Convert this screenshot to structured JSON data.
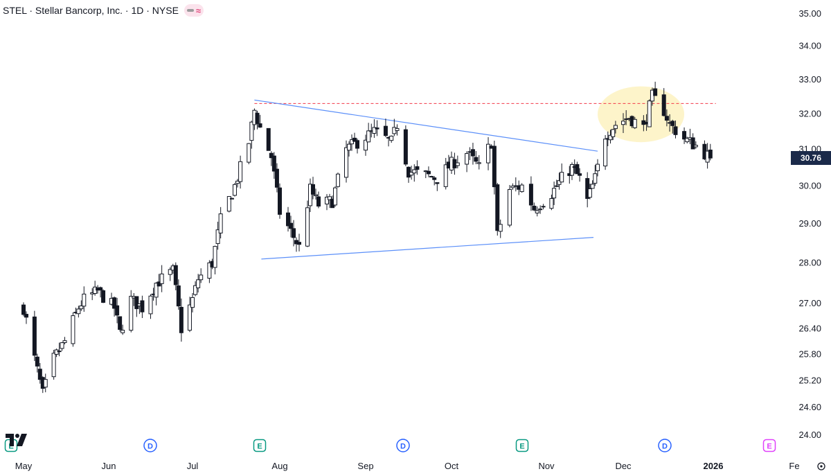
{
  "header": {
    "title": "STEL · Stellar Bancorp, Inc. · 1D · NYSE",
    "badge_icons": [
      "minus-icon",
      "wave-icon"
    ]
  },
  "price_tag": "30.76",
  "events": [
    {
      "type": "E",
      "month": "May",
      "color": "#089981"
    },
    {
      "type": "D",
      "month": "Jun",
      "color": "#2962ff"
    },
    {
      "type": "E",
      "month": "Jul",
      "color": "#089981"
    },
    {
      "type": "D",
      "month": "Sep",
      "color": "#2962ff"
    },
    {
      "type": "E",
      "month": "Oct",
      "color": "#089981"
    },
    {
      "type": "D",
      "month": "Dec",
      "color": "#2962ff"
    },
    {
      "type": "E",
      "month": "Jan",
      "color": "#e040fb"
    }
  ],
  "colors": {
    "candle": "#131722",
    "trendline": "#5b8ff9",
    "resistance": "#f23645",
    "highlight": "#fdf3c4",
    "price_tag_bg": "#1b2a4a"
  },
  "chart_data": {
    "type": "candlestick",
    "scale": "log",
    "ylim": [
      23.8,
      35.3
    ],
    "y_ticks": [
      "35.00",
      "34.00",
      "33.00",
      "32.00",
      "31.00",
      "30.00",
      "29.00",
      "28.00",
      "27.00",
      "26.40",
      "25.80",
      "25.20",
      "24.60",
      "24.00"
    ],
    "x_labels": [
      "May",
      "Jun",
      "Jul",
      "Aug",
      "Sep",
      "Oct",
      "Nov",
      "Dec",
      "2026",
      "Fe"
    ],
    "last_price": 30.76,
    "close_path": [
      [
        "2025-05-01",
        26.9
      ],
      [
        "2025-05-05",
        25.7
      ],
      [
        "2025-05-08",
        24.9
      ],
      [
        "2025-05-12",
        25.7
      ],
      [
        "2025-05-16",
        26.1
      ],
      [
        "2025-05-21",
        26.9
      ],
      [
        "2025-05-23",
        27.1
      ],
      [
        "2025-05-28",
        27.3
      ],
      [
        "2025-06-03",
        26.9
      ],
      [
        "2025-06-05",
        26.3
      ],
      [
        "2025-06-09",
        27.1
      ],
      [
        "2025-06-13",
        26.9
      ],
      [
        "2025-06-18",
        27.5
      ],
      [
        "2025-06-24",
        27.8
      ],
      [
        "2025-06-27",
        26.4
      ],
      [
        "2025-07-01",
        27.1
      ],
      [
        "2025-07-03",
        27.6
      ],
      [
        "2025-07-08",
        28.0
      ],
      [
        "2025-07-11",
        29.1
      ],
      [
        "2025-07-16",
        30.0
      ],
      [
        "2025-07-21",
        31.2
      ],
      [
        "2025-07-23",
        32.1
      ],
      [
        "2025-07-25",
        31.6
      ],
      [
        "2025-07-29",
        30.8
      ],
      [
        "2025-08-01",
        29.3
      ],
      [
        "2025-08-05",
        28.8
      ],
      [
        "2025-08-08",
        28.4
      ],
      [
        "2025-08-12",
        29.9
      ],
      [
        "2025-08-15",
        29.5
      ],
      [
        "2025-08-20",
        29.6
      ],
      [
        "2025-08-25",
        31.0
      ],
      [
        "2025-08-29",
        31.2
      ],
      [
        "2025-09-04",
        31.5
      ],
      [
        "2025-09-10",
        31.2
      ],
      [
        "2025-09-12",
        31.7
      ],
      [
        "2025-09-16",
        30.4
      ],
      [
        "2025-09-22",
        30.3
      ],
      [
        "2025-09-26",
        30.2
      ],
      [
        "2025-10-01",
        30.6
      ],
      [
        "2025-10-06",
        30.9
      ],
      [
        "2025-10-10",
        30.5
      ],
      [
        "2025-10-14",
        31.2
      ],
      [
        "2025-10-16",
        28.7
      ],
      [
        "2025-10-20",
        29.9
      ],
      [
        "2025-10-24",
        30.0
      ],
      [
        "2025-10-28",
        29.4
      ],
      [
        "2025-11-03",
        29.8
      ],
      [
        "2025-11-07",
        30.2
      ],
      [
        "2025-11-11",
        30.5
      ],
      [
        "2025-11-14",
        30.2
      ],
      [
        "2025-11-17",
        29.6
      ],
      [
        "2025-11-20",
        30.2
      ],
      [
        "2025-11-24",
        31.4
      ],
      [
        "2025-11-28",
        31.7
      ],
      [
        "2025-12-03",
        31.9
      ],
      [
        "2025-12-08",
        31.6
      ],
      [
        "2025-12-11",
        32.5
      ],
      [
        "2025-12-15",
        32.1
      ],
      [
        "2025-12-17",
        31.7
      ],
      [
        "2025-12-22",
        31.3
      ],
      [
        "2025-12-26",
        31.1
      ],
      [
        "2025-12-31",
        30.76
      ]
    ],
    "annotations": {
      "resistance": {
        "price": 32.3,
        "from": "2025-07-23",
        "to": "2026-01-02"
      },
      "upper_trendline": {
        "from": [
          "2025-07-23",
          32.4
        ],
        "to": [
          "2025-11-21",
          30.95
        ]
      },
      "lower_trendline": {
        "from": [
          "2025-07-23",
          28.1
        ],
        "to": [
          "2025-11-21",
          28.65
        ]
      },
      "highlight_zone": {
        "from": "2025-11-21",
        "to": "2025-12-22",
        "low": 31.2,
        "high": 32.8
      }
    }
  }
}
